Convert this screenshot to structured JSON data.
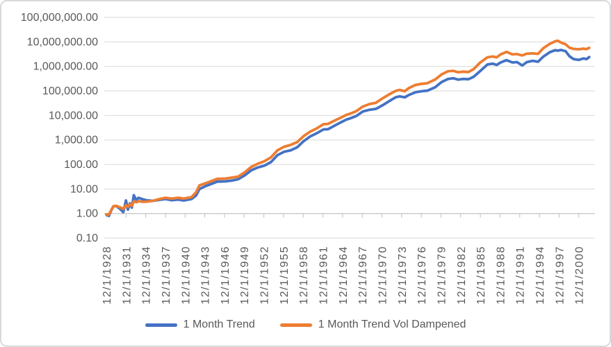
{
  "colors": {
    "blue_series": "#4472C4",
    "orange_series": "#ED7D31",
    "gridline": "#D9D9D9",
    "axis": "#BFBFBF",
    "text": "#595959",
    "frame_border": "#D9D9D9",
    "background": "#FFFFFF"
  },
  "legend": {
    "position": "bottom"
  },
  "chart_data": {
    "type": "line",
    "title": "",
    "xlabel": "",
    "ylabel": "",
    "grid": "horizontal-only",
    "legend_position": "bottom",
    "y_axis": {
      "scale": "log",
      "ylim": [
        0.1,
        100000000
      ],
      "ticks": [
        {
          "label": "100,000,000.00",
          "value": 100000000
        },
        {
          "label": "10,000,000.00",
          "value": 10000000
        },
        {
          "label": "1,000,000.00",
          "value": 1000000
        },
        {
          "label": "100,000.00",
          "value": 100000
        },
        {
          "label": "10,000.00",
          "value": 10000
        },
        {
          "label": "1,000.00",
          "value": 1000
        },
        {
          "label": "100.00",
          "value": 100
        },
        {
          "label": "10.00",
          "value": 10
        },
        {
          "label": "1.00",
          "value": 1
        },
        {
          "label": "0.10",
          "value": 0.1
        }
      ]
    },
    "x_axis": {
      "tick_interval_years": 3,
      "tick_labels": [
        "12/1/1928",
        "12/1/1931",
        "12/1/1934",
        "12/1/1937",
        "12/1/1940",
        "12/1/1943",
        "12/1/1946",
        "12/1/1949",
        "12/1/1952",
        "12/1/1955",
        "12/1/1958",
        "12/1/1961",
        "12/1/1964",
        "12/1/1967",
        "12/1/1970",
        "12/1/1973",
        "12/1/1976",
        "12/1/1979",
        "12/1/1982",
        "12/1/1985",
        "12/1/1988",
        "12/1/1991",
        "12/1/1994",
        "12/1/1997",
        "12/1/2000"
      ]
    },
    "x": [
      1928.92,
      1929.3,
      1929.7,
      1930.0,
      1930.4,
      1931.0,
      1931.5,
      1931.9,
      1932.2,
      1932.5,
      1932.8,
      1933.1,
      1933.5,
      1933.8,
      1934.5,
      1935.0,
      1936.0,
      1937.0,
      1937.9,
      1938.9,
      1939.9,
      1940.7,
      1941.9,
      1942.6,
      1943.1,
      1944.0,
      1945.0,
      1945.8,
      1947.0,
      1948.0,
      1949.0,
      1950.0,
      1951.0,
      1952.0,
      1953.0,
      1954.0,
      1955.0,
      1956.0,
      1957.0,
      1958.0,
      1959.0,
      1960.0,
      1961.0,
      1962.0,
      1962.7,
      1963.5,
      1964.5,
      1965.5,
      1966.3,
      1967.0,
      1968.0,
      1969.0,
      1970.0,
      1971.0,
      1972.0,
      1973.0,
      1973.6,
      1974.4,
      1975.0,
      1976.0,
      1977.0,
      1977.8,
      1979.0,
      1980.0,
      1981.0,
      1981.8,
      1982.5,
      1983.3,
      1984.1,
      1984.9,
      1985.9,
      1987.0,
      1987.8,
      1988.4,
      1989.0,
      1989.9,
      1990.8,
      1991.5,
      1992.3,
      1993.0,
      1993.9,
      1994.7,
      1995.5,
      1996.5,
      1997.3,
      1997.7,
      1998.2,
      1998.9,
      1999.5,
      2000.1,
      2000.9,
      2001.6,
      2002.1,
      2002.5
    ],
    "series": [
      {
        "name": "1 Month Trend",
        "color": "#4472C4",
        "values": [
          0.9,
          0.8,
          1.4,
          1.95,
          2.05,
          1.55,
          1.15,
          3.4,
          1.45,
          2.6,
          1.75,
          5.6,
          3.4,
          4.4,
          3.8,
          3.5,
          3.3,
          3.6,
          3.9,
          3.5,
          3.7,
          3.4,
          3.9,
          5.5,
          10,
          13,
          16.5,
          20,
          20.5,
          22,
          25,
          36,
          58,
          76,
          90,
          125,
          240,
          330,
          380,
          500,
          900,
          1400,
          1900,
          2700,
          2750,
          3600,
          5000,
          6800,
          8000,
          9500,
          14500,
          17000,
          18500,
          26000,
          38000,
          55000,
          60000,
          55000,
          68000,
          88000,
          98000,
          102000,
          140000,
          230000,
          310000,
          330000,
          290000,
          310000,
          300000,
          380000,
          650000,
          1200000,
          1300000,
          1150000,
          1450000,
          1800000,
          1450000,
          1500000,
          1100000,
          1500000,
          1700000,
          1550000,
          2500000,
          3800000,
          4600000,
          4400000,
          4700000,
          4200000,
          2600000,
          2000000,
          1850000,
          2100000,
          2000000,
          2400000
        ]
      },
      {
        "name": "1 Month Trend Vol Dampened",
        "color": "#ED7D31",
        "values": [
          0.93,
          0.9,
          1.45,
          2.0,
          2.05,
          1.8,
          1.55,
          2.2,
          1.9,
          2.4,
          2.05,
          3.1,
          2.9,
          3.2,
          3.0,
          3.05,
          3.3,
          3.9,
          4.4,
          4.1,
          4.4,
          4.1,
          4.7,
          7.5,
          14,
          17,
          21.5,
          26,
          26.5,
          29,
          32,
          48,
          80,
          108,
          135,
          195,
          380,
          530,
          630,
          820,
          1450,
          2200,
          3000,
          4400,
          4500,
          5800,
          7800,
          10500,
          12500,
          15000,
          23000,
          29000,
          33000,
          50000,
          72000,
          100000,
          110000,
          98000,
          130000,
          175000,
          195000,
          205000,
          290000,
          470000,
          640000,
          660000,
          580000,
          610000,
          590000,
          780000,
          1450000,
          2350000,
          2550000,
          2350000,
          3100000,
          3900000,
          3100000,
          3200000,
          2800000,
          3300000,
          3400000,
          3250000,
          5500000,
          8300000,
          10500000,
          11200000,
          9500000,
          8000000,
          5800000,
          5200000,
          5000000,
          5300000,
          5100000,
          5700000
        ]
      }
    ]
  }
}
